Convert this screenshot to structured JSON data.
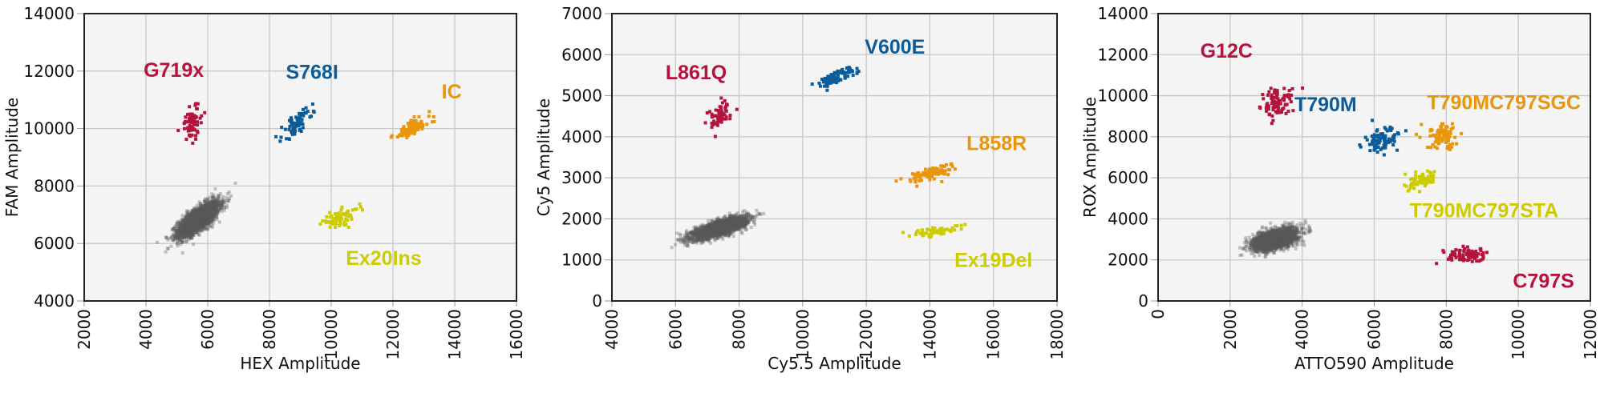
{
  "chart_data": [
    {
      "type": "scatter",
      "xlabel": "HEX Amplitude",
      "ylabel": "FAM Amplitude",
      "xlim": [
        2000,
        16000
      ],
      "ylim": [
        4000,
        14000
      ],
      "xticks": [
        2000,
        4000,
        6000,
        8000,
        10000,
        12000,
        14000,
        16000
      ],
      "yticks": [
        4000,
        6000,
        8000,
        10000,
        12000,
        14000
      ],
      "grid": true,
      "clusters": [
        {
          "label": "",
          "color": "#5a5a5a",
          "center": [
            5700,
            6850
          ],
          "sd": [
            330,
            300
          ],
          "rho": 0.75,
          "n": 2500
        },
        {
          "label": "G719x",
          "color": "#b5123e",
          "center": [
            5500,
            10200
          ],
          "sd": [
            180,
            300
          ],
          "rho": 0.2,
          "n": 70,
          "label_pos": [
            4900,
            12050
          ]
        },
        {
          "label": "S768I",
          "color": "#0b5c98",
          "center": [
            8900,
            10200
          ],
          "sd": [
            250,
            280
          ],
          "rho": 0.8,
          "n": 70,
          "label_pos": [
            9380,
            11980
          ]
        },
        {
          "label": "IC",
          "color": "#e8960c",
          "center": [
            12600,
            10000
          ],
          "sd": [
            300,
            200
          ],
          "rho": 0.7,
          "n": 110,
          "label_pos": [
            13900,
            11300
          ]
        },
        {
          "label": "Ex20Ins",
          "color": "#cccc00",
          "center": [
            10300,
            6900
          ],
          "sd": [
            300,
            170
          ],
          "rho": 0.6,
          "n": 70,
          "label_pos": [
            11700,
            5500
          ]
        }
      ]
    },
    {
      "type": "scatter",
      "xlabel": "Cy5.5 Amplitude",
      "ylabel": "Cy5 Amplitude",
      "xlim": [
        4000,
        18000
      ],
      "ylim": [
        0,
        7000
      ],
      "xticks": [
        4000,
        6000,
        8000,
        10000,
        12000,
        14000,
        16000,
        18000
      ],
      "yticks": [
        0,
        1000,
        2000,
        3000,
        4000,
        5000,
        6000,
        7000
      ],
      "grid": true,
      "clusters": [
        {
          "label": "",
          "color": "#5a5a5a",
          "center": [
            7400,
            1780
          ],
          "sd": [
            420,
            130
          ],
          "rho": 0.75,
          "n": 2500
        },
        {
          "label": "L861Q",
          "color": "#b5123e",
          "center": [
            7400,
            4500
          ],
          "sd": [
            200,
            160
          ],
          "rho": 0.4,
          "n": 60,
          "label_pos": [
            6650,
            5580
          ]
        },
        {
          "label": "V600E",
          "color": "#0b5c98",
          "center": [
            11000,
            5450
          ],
          "sd": [
            330,
            130
          ],
          "rho": 0.8,
          "n": 80,
          "label_pos": [
            12900,
            6200
          ]
        },
        {
          "label": "L858R",
          "color": "#e8960c",
          "center": [
            14000,
            3100
          ],
          "sd": [
            380,
            110
          ],
          "rho": 0.7,
          "n": 90,
          "label_pos": [
            16100,
            3850
          ]
        },
        {
          "label": "Ex19Del",
          "color": "#cccc00",
          "center": [
            14200,
            1700
          ],
          "sd": [
            420,
            60
          ],
          "rho": 0.6,
          "n": 60,
          "label_pos": [
            16000,
            1000
          ]
        }
      ]
    },
    {
      "type": "scatter",
      "xlabel": "ATTO590 Amplitude",
      "ylabel": "ROX Amplitude",
      "xlim": [
        0,
        12000
      ],
      "ylim": [
        0,
        14000
      ],
      "xticks": [
        0,
        2000,
        4000,
        6000,
        8000,
        10000,
        12000
      ],
      "yticks": [
        0,
        2000,
        4000,
        6000,
        8000,
        10000,
        12000,
        14000
      ],
      "grid": true,
      "clusters": [
        {
          "label": "",
          "color": "#5a5a5a",
          "center": [
            3250,
            3000
          ],
          "sd": [
            300,
            260
          ],
          "rho": 0.5,
          "n": 2500
        },
        {
          "label": "G12C",
          "color": "#b5123e",
          "center": [
            3300,
            9600
          ],
          "sd": [
            220,
            380
          ],
          "rho": 0.1,
          "n": 90,
          "label_pos": [
            1900,
            12200
          ]
        },
        {
          "label": "T790M",
          "color": "#0b5c98",
          "center": [
            6200,
            7800
          ],
          "sd": [
            220,
            300
          ],
          "rho": 0.3,
          "n": 80,
          "label_pos": [
            4650,
            9600
          ]
        },
        {
          "label": "T790MC797SGC",
          "color": "#e8960c",
          "center": [
            7900,
            8000
          ],
          "sd": [
            230,
            320
          ],
          "rho": 0.2,
          "n": 90,
          "label_pos": [
            9600,
            9700
          ]
        },
        {
          "label": "T790MC797STA",
          "color": "#cccc00",
          "center": [
            7400,
            5900
          ],
          "sd": [
            250,
            220
          ],
          "rho": 0.6,
          "n": 70,
          "label_pos": [
            9050,
            4430
          ]
        },
        {
          "label": "C797S",
          "color": "#b5123e",
          "center": [
            8600,
            2200
          ],
          "sd": [
            300,
            170
          ],
          "rho": 0.1,
          "n": 80,
          "label_pos": [
            10700,
            1000
          ]
        }
      ]
    }
  ]
}
